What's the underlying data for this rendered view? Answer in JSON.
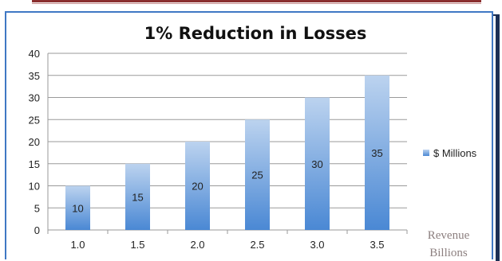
{
  "chart_data": {
    "type": "bar",
    "title": "1% Reduction in Losses",
    "categories": [
      "1.0",
      "1.5",
      "2.0",
      "2.5",
      "3.0",
      "3.5"
    ],
    "series": [
      {
        "name": "$ Millions",
        "values": [
          10,
          15,
          20,
          25,
          30,
          35
        ]
      }
    ],
    "data_labels": [
      "10",
      "15",
      "20",
      "25",
      "30",
      "35"
    ],
    "y_ticks": [
      "0",
      "5",
      "10",
      "15",
      "20",
      "25",
      "30",
      "35",
      "40"
    ],
    "ylim": [
      0,
      40
    ],
    "grid": true,
    "legend_position": "right",
    "annotation": [
      "Revenue",
      "Billions"
    ],
    "colors": {
      "bar_top": "#bcd3ef",
      "bar_bottom": "#4a88d4",
      "grid": "#9a9a9a",
      "frame": "#3f78c4"
    }
  }
}
